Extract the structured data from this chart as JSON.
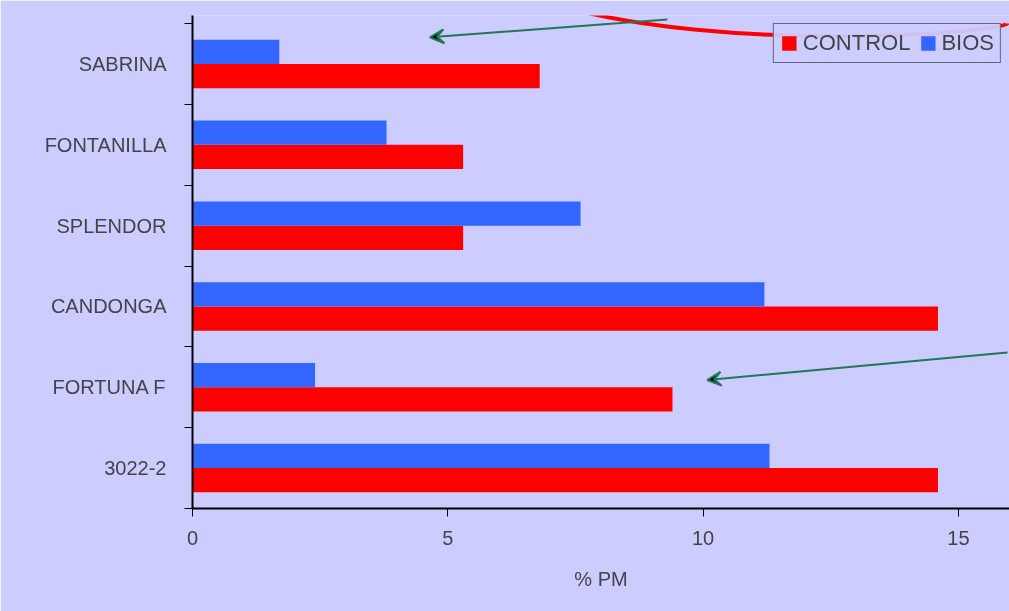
{
  "chart_data": {
    "type": "bar",
    "orientation": "horizontal",
    "xlabel": "% PM",
    "categories": [
      "SABRINA",
      "FONTANILLA",
      "SPLENDOR",
      "CANDONGA",
      "FORTUNA F",
      "3022-2"
    ],
    "series": [
      {
        "name": "CONTROL",
        "color": "#ff0000",
        "values": [
          6.8,
          5.3,
          5.3,
          14.6,
          9.4,
          14.6
        ]
      },
      {
        "name": "BIOS",
        "color": "#3366ff",
        "values": [
          1.7,
          3.8,
          7.6,
          11.2,
          2.4,
          11.3
        ]
      }
    ],
    "xlim": [
      0,
      16
    ],
    "xticks": [
      0,
      5,
      10,
      15
    ],
    "grid": false,
    "legend": "top right"
  }
}
